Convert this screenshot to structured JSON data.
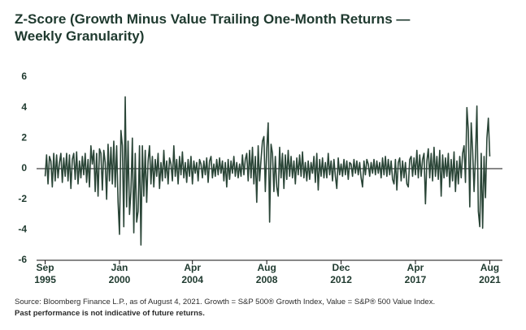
{
  "chart_data": {
    "type": "line",
    "title": "Z-Score (Growth Minus Value Trailing One-Month Returns — Weekly Granularity)",
    "source": "Source: Bloomberg Finance L.P., as of August 4, 2021. Growth = S&P 500® Growth Index, Value = S&P® 500 Value Index.",
    "note": "Past performance is not indicative of future returns.",
    "xlim": [
      "1995-03",
      "2022-02"
    ],
    "xticks": [
      {
        "value": "1995-09",
        "label": "Sep 1995"
      },
      {
        "value": "2000-01",
        "label": "Jan 2000"
      },
      {
        "value": "2004-04",
        "label": "Apr 2004"
      },
      {
        "value": "2008-08",
        "label": "Aug 2008"
      },
      {
        "value": "2012-12",
        "label": "Dec 2012"
      },
      {
        "value": "2017-04",
        "label": "Apr 2017"
      },
      {
        "value": "2021-08",
        "label": "Aug 2021"
      }
    ],
    "ylim": [
      -6,
      6
    ],
    "yticks": [
      -6,
      -4,
      -2,
      0,
      2,
      4,
      6
    ],
    "color": "#2a4537",
    "x": [
      "1995-09",
      "1995-10",
      "1995-11",
      "1995-12",
      "1996-01",
      "1996-02",
      "1996-03",
      "1996-04",
      "1996-05",
      "1996-06",
      "1996-07",
      "1996-08",
      "1996-09",
      "1996-10",
      "1996-11",
      "1996-12",
      "1997-01",
      "1997-02",
      "1997-03",
      "1997-04",
      "1997-05",
      "1997-06",
      "1997-07",
      "1997-08",
      "1997-09",
      "1997-10",
      "1997-11",
      "1997-12",
      "1998-01",
      "1998-02",
      "1998-03",
      "1998-04",
      "1998-05",
      "1998-06",
      "1998-07",
      "1998-08",
      "1998-09",
      "1998-10",
      "1998-11",
      "1998-12",
      "1999-01",
      "1999-02",
      "1999-03",
      "1999-04",
      "1999-05",
      "1999-06",
      "1999-07",
      "1999-08",
      "1999-09",
      "1999-10",
      "1999-11",
      "1999-12",
      "2000-01",
      "2000-02",
      "2000-03",
      "2000-04",
      "2000-05",
      "2000-06",
      "2000-07",
      "2000-08",
      "2000-09",
      "2000-10",
      "2000-11",
      "2000-12",
      "2001-01",
      "2001-02",
      "2001-03",
      "2001-04",
      "2001-05",
      "2001-06",
      "2001-07",
      "2001-08",
      "2001-09",
      "2001-10",
      "2001-11",
      "2001-12",
      "2002-01",
      "2002-02",
      "2002-03",
      "2002-04",
      "2002-05",
      "2002-06",
      "2002-07",
      "2002-08",
      "2002-09",
      "2002-10",
      "2002-11",
      "2002-12",
      "2003-01",
      "2003-02",
      "2003-03",
      "2003-04",
      "2003-05",
      "2003-06",
      "2003-07",
      "2003-08",
      "2003-09",
      "2003-10",
      "2003-11",
      "2003-12",
      "2004-01",
      "2004-02",
      "2004-03",
      "2004-04",
      "2004-05",
      "2004-06",
      "2004-07",
      "2004-08",
      "2004-09",
      "2004-10",
      "2004-11",
      "2004-12",
      "2005-01",
      "2005-02",
      "2005-03",
      "2005-04",
      "2005-05",
      "2005-06",
      "2005-07",
      "2005-08",
      "2005-09",
      "2005-10",
      "2005-11",
      "2005-12",
      "2006-01",
      "2006-02",
      "2006-03",
      "2006-04",
      "2006-05",
      "2006-06",
      "2006-07",
      "2006-08",
      "2006-09",
      "2006-10",
      "2006-11",
      "2006-12",
      "2007-01",
      "2007-02",
      "2007-03",
      "2007-04",
      "2007-05",
      "2007-06",
      "2007-07",
      "2007-08",
      "2007-09",
      "2007-10",
      "2007-11",
      "2007-12",
      "2008-01",
      "2008-02",
      "2008-03",
      "2008-04",
      "2008-05",
      "2008-06",
      "2008-07",
      "2008-08",
      "2008-09",
      "2008-10",
      "2008-11",
      "2008-12",
      "2009-01",
      "2009-02",
      "2009-03",
      "2009-04",
      "2009-05",
      "2009-06",
      "2009-07",
      "2009-08",
      "2009-09",
      "2009-10",
      "2009-11",
      "2009-12",
      "2010-01",
      "2010-02",
      "2010-03",
      "2010-04",
      "2010-05",
      "2010-06",
      "2010-07",
      "2010-08",
      "2010-09",
      "2010-10",
      "2010-11",
      "2010-12",
      "2011-01",
      "2011-02",
      "2011-03",
      "2011-04",
      "2011-05",
      "2011-06",
      "2011-07",
      "2011-08",
      "2011-09",
      "2011-10",
      "2011-11",
      "2011-12",
      "2012-01",
      "2012-02",
      "2012-03",
      "2012-04",
      "2012-05",
      "2012-06",
      "2012-07",
      "2012-08",
      "2012-09",
      "2012-10",
      "2012-11",
      "2012-12",
      "2013-01",
      "2013-02",
      "2013-03",
      "2013-04",
      "2013-05",
      "2013-06",
      "2013-07",
      "2013-08",
      "2013-09",
      "2013-10",
      "2013-11",
      "2013-12",
      "2014-01",
      "2014-02",
      "2014-03",
      "2014-04",
      "2014-05",
      "2014-06",
      "2014-07",
      "2014-08",
      "2014-09",
      "2014-10",
      "2014-11",
      "2014-12",
      "2015-01",
      "2015-02",
      "2015-03",
      "2015-04",
      "2015-05",
      "2015-06",
      "2015-07",
      "2015-08",
      "2015-09",
      "2015-10",
      "2015-11",
      "2015-12",
      "2016-01",
      "2016-02",
      "2016-03",
      "2016-04",
      "2016-05",
      "2016-06",
      "2016-07",
      "2016-08",
      "2016-09",
      "2016-10",
      "2016-11",
      "2016-12",
      "2017-01",
      "2017-02",
      "2017-03",
      "2017-04",
      "2017-05",
      "2017-06",
      "2017-07",
      "2017-08",
      "2017-09",
      "2017-10",
      "2017-11",
      "2017-12",
      "2018-01",
      "2018-02",
      "2018-03",
      "2018-04",
      "2018-05",
      "2018-06",
      "2018-07",
      "2018-08",
      "2018-09",
      "2018-10",
      "2018-11",
      "2018-12",
      "2019-01",
      "2019-02",
      "2019-03",
      "2019-04",
      "2019-05",
      "2019-06",
      "2019-07",
      "2019-08",
      "2019-09",
      "2019-10",
      "2019-11",
      "2019-12",
      "2020-01",
      "2020-02",
      "2020-03",
      "2020-04",
      "2020-05",
      "2020-06",
      "2020-07",
      "2020-08",
      "2020-09",
      "2020-10",
      "2020-11",
      "2020-12",
      "2021-01",
      "2021-02",
      "2021-03",
      "2021-04",
      "2021-05",
      "2021-06",
      "2021-07",
      "2021-08"
    ],
    "values": [
      -0.5,
      0.9,
      -1.0,
      0.8,
      0.5,
      -1.2,
      1.0,
      -0.8,
      0.9,
      -0.6,
      0.4,
      1.0,
      -0.9,
      0.7,
      -0.5,
      1.0,
      -0.8,
      0.9,
      -1.3,
      0.6,
      1.0,
      -0.7,
      1.1,
      -1.0,
      0.5,
      -0.6,
      0.8,
      -0.4,
      1.0,
      -0.9,
      0.6,
      -1.2,
      1.5,
      0.3,
      1.2,
      -1.5,
      1.0,
      -1.8,
      1.3,
      1.0,
      -1.4,
      1.2,
      0.4,
      -2.0,
      1.6,
      -0.8,
      1.4,
      -1.0,
      1.8,
      -1.2,
      1.5,
      -2.2,
      -4.3,
      2.5,
      1.5,
      -3.8,
      4.7,
      -2.5,
      1.8,
      -3.0,
      -1.5,
      2.0,
      -4.2,
      1.0,
      -3.5,
      -2.8,
      1.5,
      -5.0,
      1.5,
      -1.8,
      1.2,
      -2.2,
      0.5,
      1.5,
      -1.0,
      0.8,
      -1.2,
      0.6,
      -0.5,
      1.0,
      -1.3,
      0.4,
      -0.8,
      1.2,
      -0.6,
      0.5,
      -1.0,
      0.7,
      0.3,
      -0.8,
      1.5,
      -0.5,
      0.6,
      -1.0,
      0.8,
      -0.4,
      1.1,
      -0.6,
      0.4,
      -0.9,
      0.6,
      -0.5,
      0.8,
      -1.0,
      0.5,
      -0.3,
      0.4,
      -0.8,
      0.6,
      0.3,
      -0.6,
      0.5,
      -0.4,
      0.7,
      -0.9,
      0.5,
      0.8,
      -0.6,
      0.3,
      -0.5,
      0.6,
      -0.4,
      0.7,
      -0.3,
      0.5,
      -0.8,
      0.4,
      -1.2,
      0.6,
      -0.7,
      0.5,
      -0.3,
      0.8,
      -0.5,
      0.4,
      -0.6,
      0.3,
      -0.5,
      0.9,
      -0.4,
      0.6,
      1.0,
      -0.8,
      1.2,
      -0.6,
      1.4,
      -1.0,
      0.8,
      -2.2,
      1.5,
      -0.8,
      0.6,
      1.8,
      2.1,
      -1.5,
      1.3,
      3.0,
      -3.5,
      1.6,
      1.0,
      -1.5,
      0.8,
      -1.2,
      -1.8,
      1.4,
      -0.6,
      1.0,
      -1.3,
      0.9,
      -0.7,
      1.2,
      -0.5,
      0.8,
      -0.6,
      0.5,
      -1.0,
      0.7,
      -0.4,
      0.9,
      -0.5,
      1.1,
      -0.6,
      0.4,
      -0.8,
      0.5,
      -0.7,
      0.4,
      -0.3,
      0.8,
      -0.9,
      1.0,
      -1.4,
      0.6,
      -0.5,
      0.7,
      -0.6,
      0.4,
      -0.6,
      1.0,
      -0.4,
      0.5,
      -0.8,
      0.6,
      -0.5,
      -1.3,
      0.7,
      -0.4,
      0.3,
      -0.5,
      0.6,
      -0.4,
      0.5,
      -0.7,
      0.4,
      0.3,
      -0.5,
      0.6,
      -0.3,
      0.5,
      -0.4,
      0.4,
      -0.6,
      -1.2,
      0.5,
      -0.4,
      0.6,
      0.3,
      -0.5,
      0.4,
      -0.3,
      0.6,
      -0.4,
      0.5,
      -0.3,
      0.4,
      -0.6,
      0.7,
      -0.4,
      0.8,
      -0.5,
      0.6,
      -0.4,
      0.5,
      -0.7,
      -1.0,
      0.6,
      -1.4,
      0.4,
      0.7,
      -0.8,
      0.5,
      -0.6,
      0.4,
      -1.0,
      -1.2,
      0.6,
      0.8,
      -0.5,
      0.7,
      -0.4,
      1.2,
      -0.6,
      0.9,
      -0.5,
      0.6,
      1.0,
      -2.3,
      0.5,
      1.3,
      -0.6,
      1.0,
      -0.8,
      1.4,
      -0.5,
      0.8,
      -0.7,
      1.2,
      -1.8,
      0.9,
      -0.6,
      0.7,
      -0.5,
      1.0,
      -1.2,
      0.6,
      -0.8,
      1.1,
      -1.5,
      0.5,
      -1.0,
      0.8,
      -0.6,
      1.0,
      1.5,
      -0.9,
      4.0,
      2.5,
      -2.5,
      3.0,
      1.2,
      -1.5,
      0.8,
      4.1,
      -2.8,
      -3.8,
      1.0,
      -3.9,
      0.8,
      -1.9,
      2.0,
      3.3,
      0.8
    ]
  }
}
